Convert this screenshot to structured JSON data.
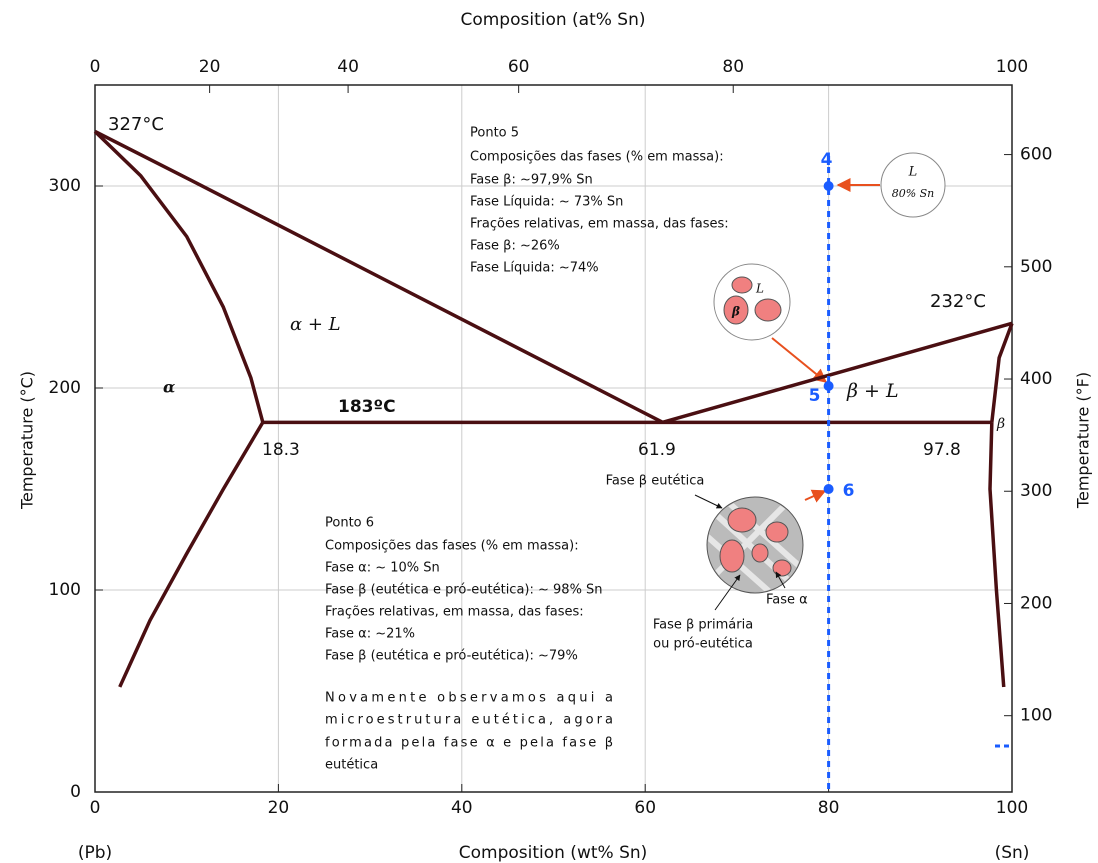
{
  "chart_data": {
    "type": "phase-diagram",
    "x_title_top": "Composition (at% Sn)",
    "x_title": "Composition (wt% Sn)",
    "y_title": "Temperature (°C)",
    "y2_title": "Temperature (°F)",
    "xlim": [
      0,
      100
    ],
    "xticks": [
      0,
      20,
      40,
      60,
      80,
      100
    ],
    "ylim": [
      0,
      350
    ],
    "yticks": [
      0,
      100,
      200,
      300
    ],
    "y2lim": [
      32,
      662
    ],
    "y2ticks": [
      100,
      200,
      300,
      400,
      500,
      600
    ],
    "top_ticks": [
      0,
      20,
      40,
      60,
      80,
      100
    ],
    "top_tick_positions_wt": [
      0,
      12.5,
      27.6,
      46.2,
      69.6,
      100
    ],
    "grid": true,
    "color": "#4a0f12",
    "phase_boundaries": [
      {
        "x": [
          0,
          10.4,
          61.9
        ],
        "y": [
          327,
          303,
          183
        ]
      },
      {
        "x": [
          0,
          5,
          10,
          14,
          17,
          18.3
        ],
        "y": [
          327,
          305,
          275,
          240,
          205,
          183
        ]
      },
      {
        "x": [
          18.3,
          14,
          10,
          6,
          2.7
        ],
        "y": [
          183,
          150,
          118,
          85,
          52
        ]
      },
      {
        "x": [
          18.3,
          97.8
        ],
        "y": [
          183,
          183
        ]
      },
      {
        "x": [
          61.9,
          100
        ],
        "y": [
          183,
          232
        ]
      },
      {
        "x": [
          100,
          98.6,
          97.8
        ],
        "y": [
          232,
          215,
          183
        ]
      },
      {
        "x": [
          97.8,
          97.6,
          98.3,
          99.1
        ],
        "y": [
          183,
          150,
          100,
          52
        ]
      }
    ],
    "alloy": {
      "composition": 80,
      "color": "#1a5cff",
      "points": [
        {
          "label": "4",
          "temperature": 300
        },
        {
          "label": "5",
          "temperature": 201
        },
        {
          "label": "6",
          "temperature": 150
        }
      ]
    },
    "annotations": [
      "327°C",
      "232°C",
      "183ºC",
      "18.3",
      "61.9",
      "97.8",
      "α + L",
      "α",
      "β + L",
      "β",
      "Ponto 5",
      "Composições das fases (% em massa):",
      "Fase β: ~97,9% Sn",
      "Fase Líquida: ~ 73% Sn",
      "Frações relativas, em massa, das fases:",
      "Fase β: ~26%",
      "Fase Líquida: ~74%",
      "Ponto 6",
      "Composições das fases (% em massa):",
      "Fase α: ~ 10% Sn",
      "Fase β (eutética e pró-eutética): ~ 98% Sn",
      "Frações relativas, em massa, das fases:",
      "Fase α: ~21%",
      "Fase β (eutética e pró-eutética): ~79%",
      "Novamente observamos aqui a",
      "microestrutura eutética, agora",
      "formada pela fase α e pela fase β",
      "eutética",
      "Fase β eutética",
      "Fase β primária",
      "ou pró-eutética",
      "Fase α",
      "L",
      "80% Sn",
      "L",
      "β",
      "(Pb)",
      "(Sn)"
    ]
  }
}
